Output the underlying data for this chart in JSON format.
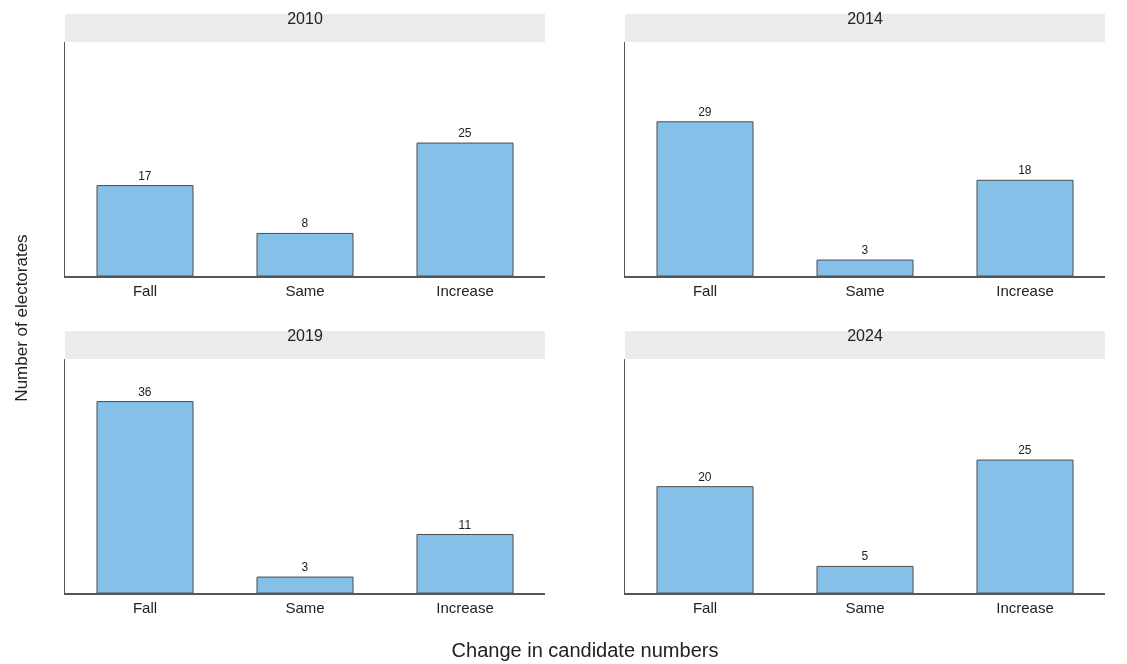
{
  "chart_data": [
    {
      "type": "bar",
      "title": "2010",
      "ylabel": "Number of electorates",
      "categories": [
        "Fall",
        "Same",
        "Increase"
      ],
      "values": [
        17,
        8,
        25
      ],
      "color": "#85c0e9",
      "ylim": [
        0,
        44
      ],
      "data_labels": true
    },
    {
      "type": "bar",
      "title": "2014",
      "categories": [
        "Fall",
        "Same",
        "Increase"
      ],
      "values": [
        29,
        3,
        18
      ],
      "color": "#85c0e9",
      "ylim": [
        0,
        44
      ],
      "data_labels": true
    },
    {
      "type": "bar",
      "title": "2019",
      "categories": [
        "Fall",
        "Same",
        "Increase"
      ],
      "values": [
        36,
        3,
        11
      ],
      "color": "#85c0e9",
      "ylim": [
        0,
        44
      ],
      "data_labels": true
    },
    {
      "type": "bar",
      "title": "2024",
      "xlabel": "Change in candidate numbers",
      "categories": [
        "Fall",
        "Same",
        "Increase"
      ],
      "values": [
        20,
        5,
        25
      ],
      "color": "#85c0e9",
      "ylim": [
        0,
        44
      ],
      "data_labels": true
    }
  ]
}
